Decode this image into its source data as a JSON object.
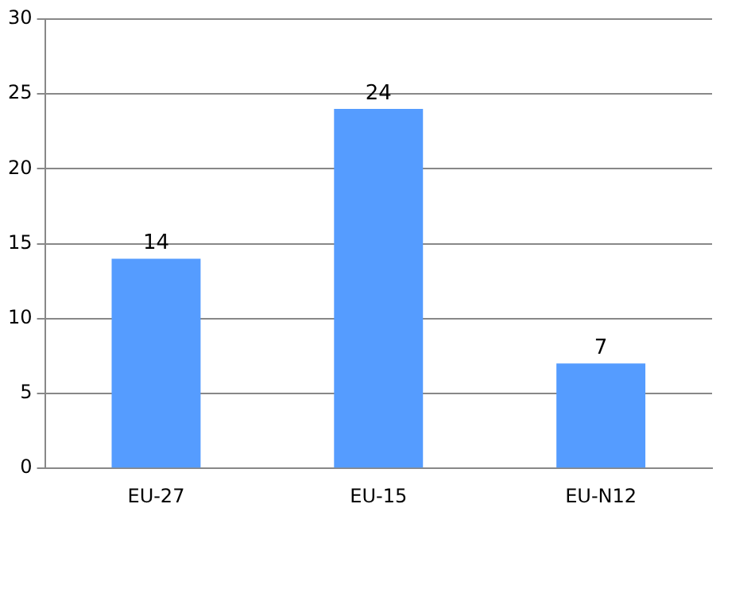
{
  "chart_data": {
    "type": "bar",
    "categories": [
      "EU-27",
      "EU-15",
      "EU-N12"
    ],
    "values": [
      14,
      24,
      7
    ],
    "color": "#559cff",
    "ylim": [
      0,
      30
    ],
    "yticks": [
      0,
      5,
      10,
      15,
      20,
      25,
      30
    ],
    "grid": "y",
    "data_labels": true,
    "legend": false
  }
}
